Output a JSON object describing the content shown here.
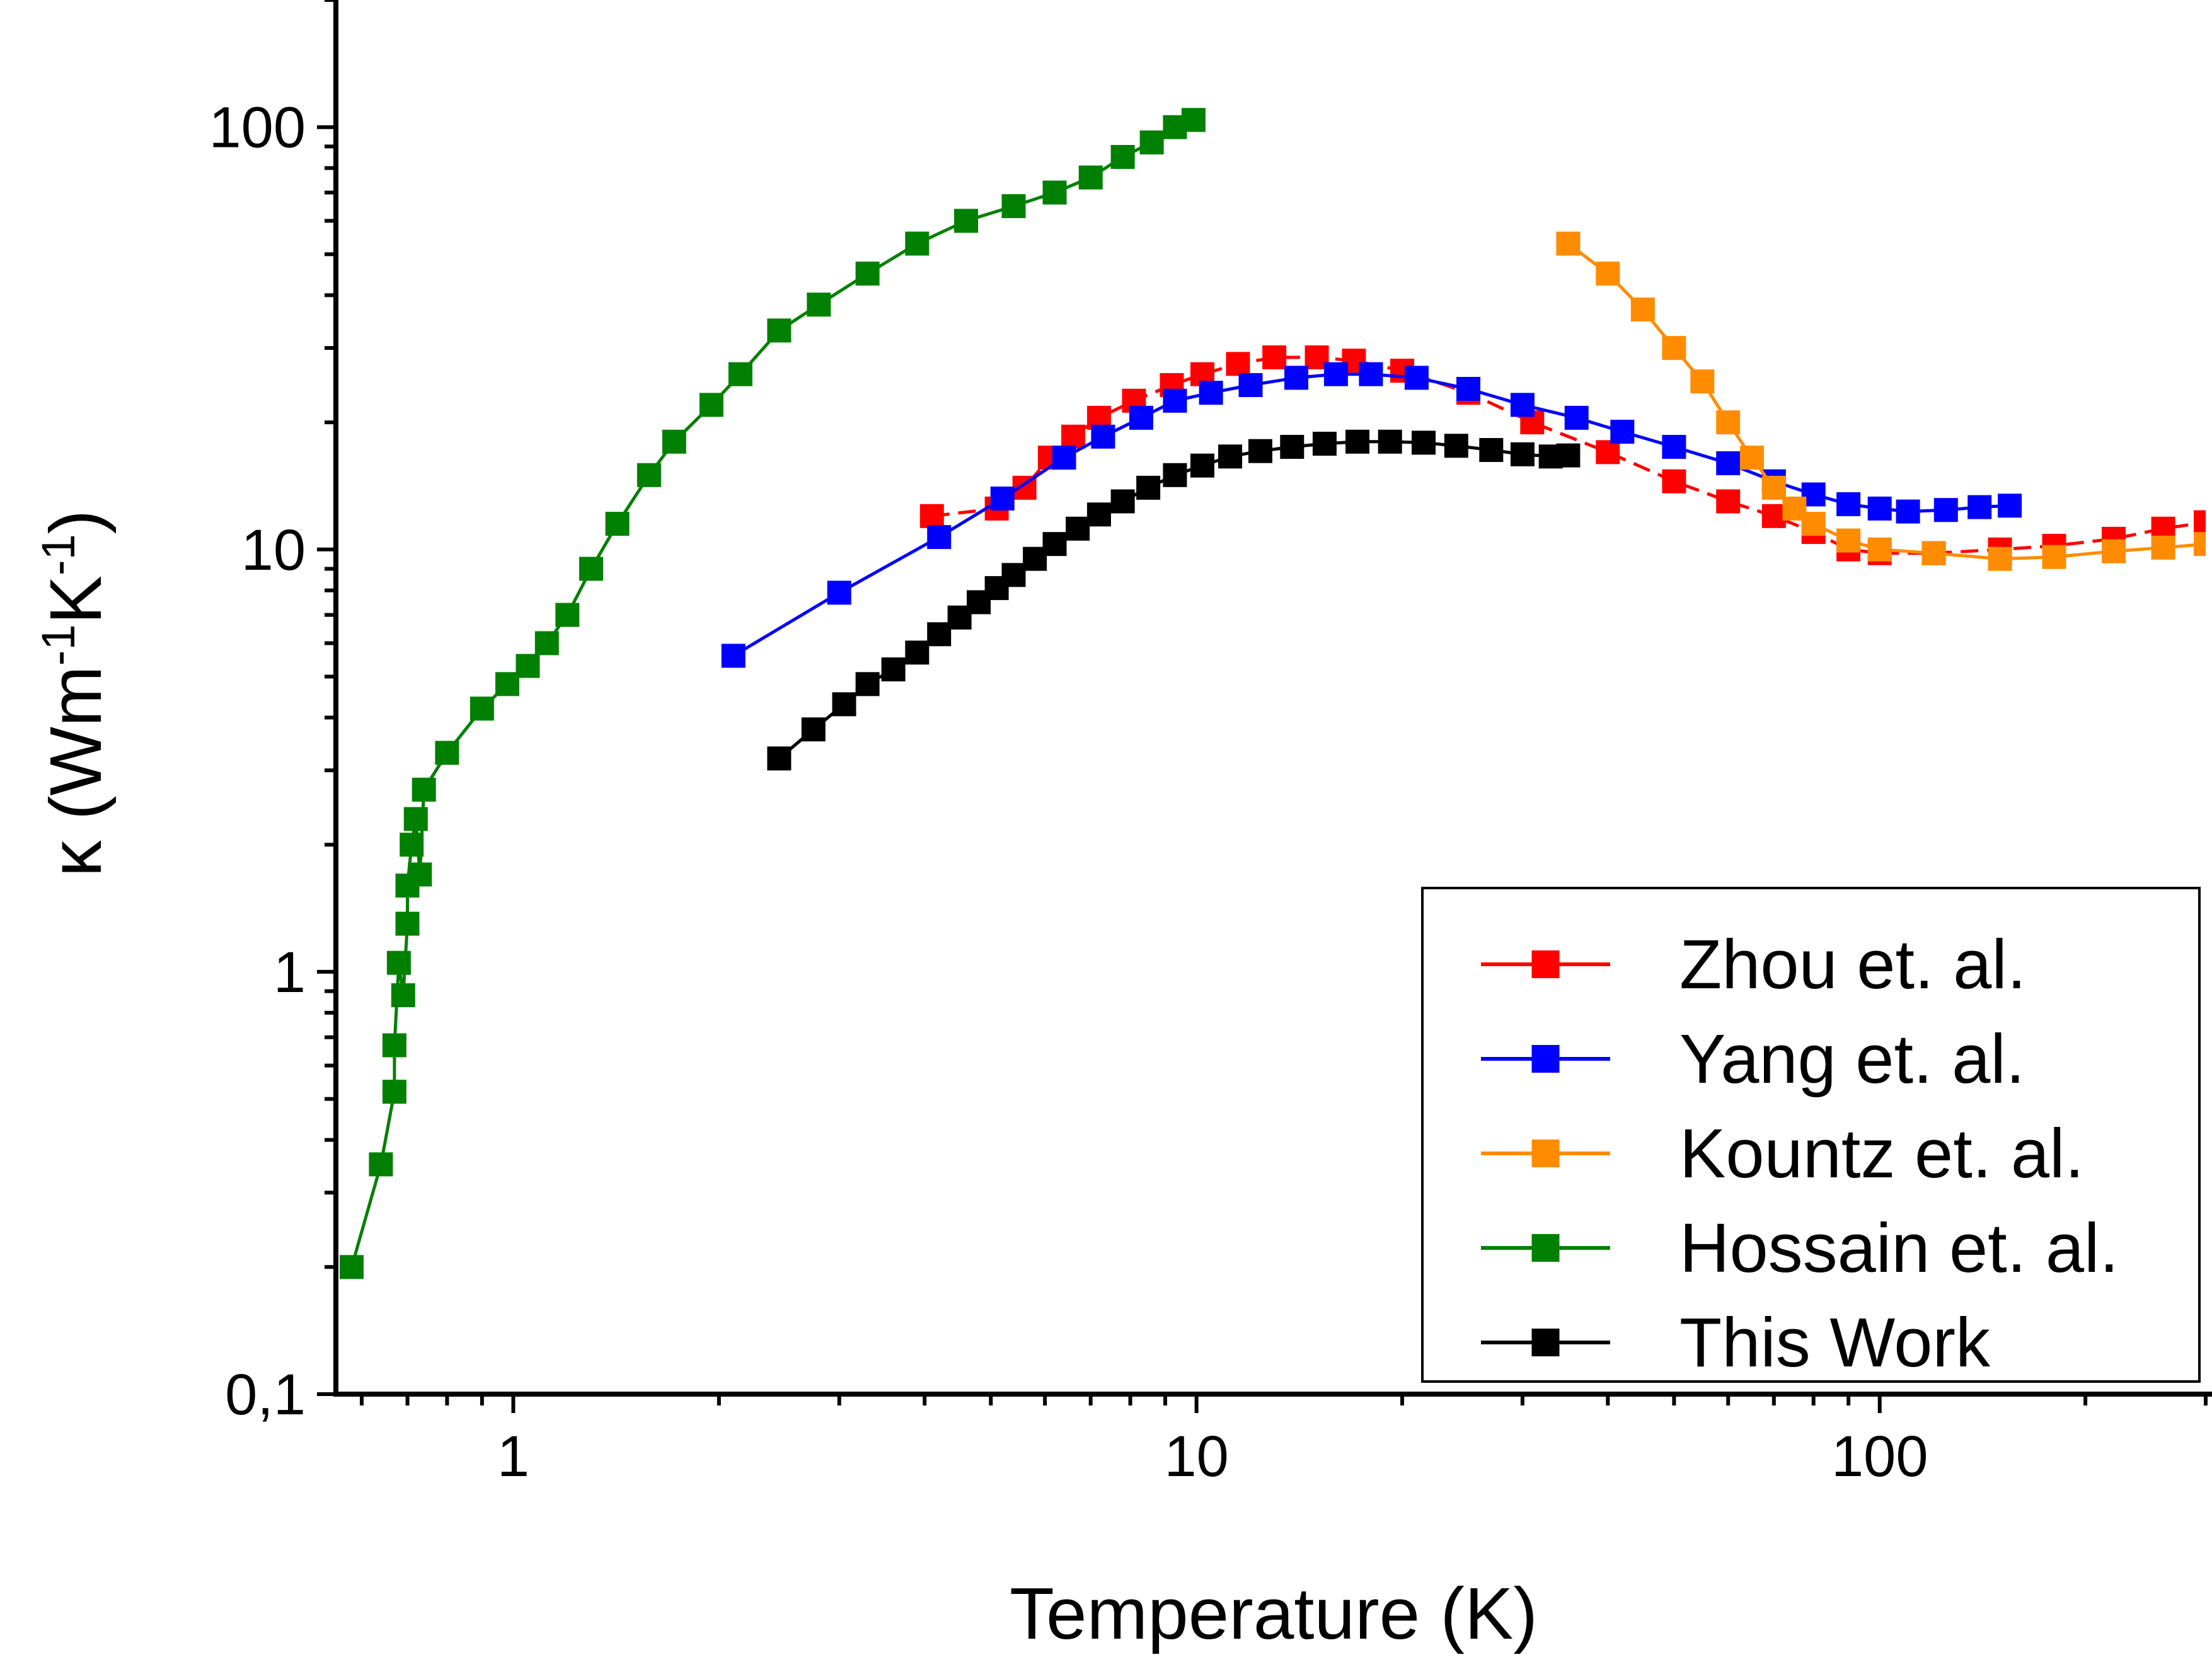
{
  "chart_data": {
    "type": "scatter",
    "xlabel": "Temperature (K)",
    "ylabel": "κ (Wm",
    "ylabel_sup1": "-1",
    "ylabel_mid": "K",
    "ylabel_sup2": "-1",
    "ylabel_end": ")",
    "x_scale": "log",
    "y_scale": "log",
    "xlim": [
      0.55,
      300
    ],
    "ylim": [
      0.1,
      200
    ],
    "grid": false,
    "legend_position": "bottom-right",
    "x_tick_labels": [
      {
        "value": 1,
        "label": "1"
      },
      {
        "value": 10,
        "label": "10"
      },
      {
        "value": 100,
        "label": "100"
      }
    ],
    "y_tick_labels": [
      {
        "value": 0.1,
        "label": "0,1"
      },
      {
        "value": 1,
        "label": "1"
      },
      {
        "value": 10,
        "label": "10"
      },
      {
        "value": 100,
        "label": "100"
      }
    ],
    "series": [
      {
        "name": "Zhou et. al.",
        "color": "#ff0000",
        "dashed": true,
        "x": [
          4.1,
          5.1,
          5.6,
          6.1,
          6.6,
          7.2,
          8.1,
          9.2,
          10.2,
          11.5,
          13,
          15,
          17,
          20,
          25,
          31,
          40,
          50,
          60,
          70,
          80,
          90,
          100,
          120,
          150,
          180,
          220,
          260,
          300
        ],
        "y": [
          12,
          12.5,
          14,
          16.5,
          18.5,
          20.5,
          22.5,
          24.5,
          26,
          27.5,
          28.5,
          28.5,
          28,
          26.5,
          23.5,
          20,
          17,
          14.5,
          13,
          12,
          11,
          10,
          9.8,
          9.8,
          10,
          10.2,
          10.6,
          11.2,
          11.6
        ]
      },
      {
        "name": "Yang et. al.",
        "color": "#0000ff",
        "dashed": false,
        "x": [
          2.1,
          3.0,
          4.2,
          5.2,
          6.4,
          7.3,
          8.3,
          9.3,
          10.5,
          12,
          14,
          16,
          18,
          21,
          25,
          30,
          36,
          42,
          50,
          60,
          70,
          80,
          90,
          100,
          110,
          125,
          140,
          155
        ],
        "y": [
          5.6,
          7.9,
          10.7,
          13.2,
          16.5,
          18.5,
          20.5,
          22.5,
          23.5,
          24.5,
          25.5,
          26,
          26,
          25.5,
          24,
          22,
          20.5,
          19,
          17.5,
          16,
          14.5,
          13.5,
          12.8,
          12.5,
          12.3,
          12.4,
          12.6,
          12.7
        ]
      },
      {
        "name": "Kountz et. al.",
        "color": "#ff8c00",
        "dashed": false,
        "x": [
          35,
          40,
          45,
          50,
          55,
          60,
          65,
          70,
          75,
          80,
          90,
          100,
          120,
          150,
          180,
          220,
          260,
          300
        ],
        "y": [
          53,
          45,
          37,
          30,
          25,
          20,
          16.5,
          14,
          12.5,
          11.5,
          10.5,
          10,
          9.8,
          9.5,
          9.6,
          9.9,
          10.1,
          10.3
        ]
      },
      {
        "name": "Hossain et. al.",
        "color": "#008000",
        "dashed": false,
        "x": [
          0.58,
          0.64,
          0.67,
          0.67,
          0.68,
          0.69,
          0.7,
          0.7,
          0.71,
          0.72,
          0.73,
          0.74,
          0.8,
          0.9,
          0.98,
          1.05,
          1.12,
          1.2,
          1.3,
          1.42,
          1.58,
          1.72,
          1.95,
          2.15,
          2.45,
          2.8,
          3.3,
          3.9,
          4.6,
          5.4,
          6.2,
          7.0,
          7.8,
          8.6,
          9.3,
          9.9
        ],
        "y": [
          0.2,
          0.35,
          0.52,
          0.67,
          1.05,
          0.88,
          1.3,
          1.6,
          2.0,
          2.3,
          1.7,
          2.7,
          3.3,
          4.2,
          4.8,
          5.3,
          6.0,
          7.0,
          9.0,
          11.5,
          15,
          18,
          22,
          26,
          33,
          38,
          45,
          53,
          60,
          65,
          70,
          76,
          85,
          92,
          100,
          104
        ]
      },
      {
        "name": "This Work",
        "color": "#000000",
        "dashed": false,
        "x": [
          2.45,
          2.75,
          3.05,
          3.3,
          3.6,
          3.9,
          4.2,
          4.5,
          4.8,
          5.1,
          5.4,
          5.8,
          6.2,
          6.7,
          7.2,
          7.8,
          8.5,
          9.3,
          10.2,
          11.2,
          12.4,
          13.8,
          15.4,
          17.2,
          19.2,
          21.5,
          24,
          27,
          30,
          33,
          35
        ],
        "y": [
          3.2,
          3.75,
          4.3,
          4.8,
          5.2,
          5.7,
          6.3,
          6.9,
          7.5,
          8.1,
          8.7,
          9.5,
          10.3,
          11.2,
          12.1,
          13.0,
          14.0,
          15.0,
          15.8,
          16.6,
          17.1,
          17.5,
          17.8,
          18.0,
          18.0,
          17.9,
          17.6,
          17.2,
          16.8,
          16.6,
          16.7
        ]
      }
    ]
  }
}
